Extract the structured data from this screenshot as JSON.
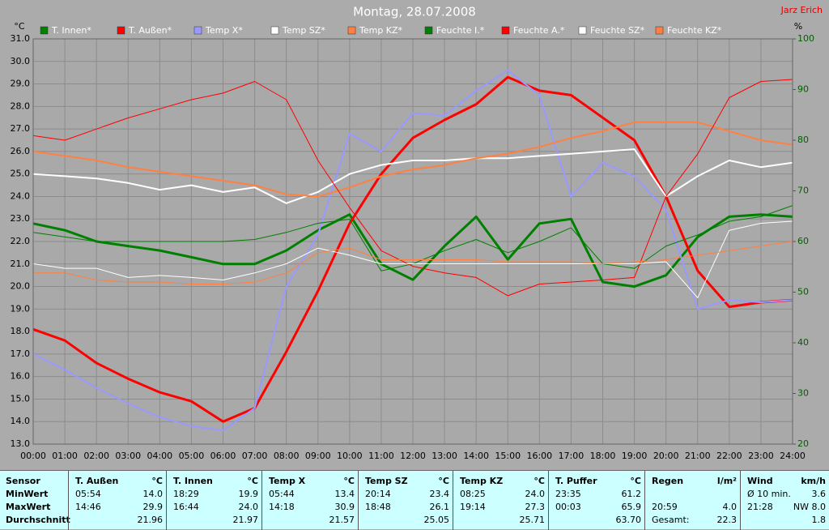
{
  "chart_data": {
    "type": "line",
    "title": "Montag, 28.07.2008",
    "credit": "Jarz Erich",
    "y_label": "°C",
    "y2_label": "%",
    "xlim": [
      0,
      24
    ],
    "xticks": [
      {
        "value": 0,
        "label": "00:00"
      },
      {
        "value": 1,
        "label": "01:00"
      },
      {
        "value": 2,
        "label": "02:00"
      },
      {
        "value": 3,
        "label": "03:00"
      },
      {
        "value": 4,
        "label": "04:00"
      },
      {
        "value": 5,
        "label": "05:00"
      },
      {
        "value": 6,
        "label": "06:00"
      },
      {
        "value": 7,
        "label": "07:00"
      },
      {
        "value": 8,
        "label": "08:00"
      },
      {
        "value": 9,
        "label": "09:00"
      },
      {
        "value": 10,
        "label": "10:00"
      },
      {
        "value": 11,
        "label": "11:00"
      },
      {
        "value": 12,
        "label": "12:00"
      },
      {
        "value": 13,
        "label": "13:00"
      },
      {
        "value": 14,
        "label": "14:00"
      },
      {
        "value": 15,
        "label": "15:00"
      },
      {
        "value": 16,
        "label": "16:00"
      },
      {
        "value": 17,
        "label": "17:00"
      },
      {
        "value": 18,
        "label": "18:00"
      },
      {
        "value": 19,
        "label": "19:00"
      },
      {
        "value": 20,
        "label": "20:00"
      },
      {
        "value": 21,
        "label": "21:00"
      },
      {
        "value": 22,
        "label": "22:00"
      },
      {
        "value": 23,
        "label": "23:00"
      },
      {
        "value": 24,
        "label": "24:00"
      }
    ],
    "ylim": [
      13,
      31
    ],
    "yticks": [
      {
        "value": 13,
        "label": "13.0"
      },
      {
        "value": 14,
        "label": "14.0"
      },
      {
        "value": 15,
        "label": "15.0"
      },
      {
        "value": 16,
        "label": "16.0"
      },
      {
        "value": 17,
        "label": "17.0"
      },
      {
        "value": 18,
        "label": "18.0"
      },
      {
        "value": 19,
        "label": "19.0"
      },
      {
        "value": 20,
        "label": "20.0"
      },
      {
        "value": 21,
        "label": "21.0"
      },
      {
        "value": 22,
        "label": "22.0"
      },
      {
        "value": 23,
        "label": "23.0"
      },
      {
        "value": 24,
        "label": "24.0"
      },
      {
        "value": 25,
        "label": "25.0"
      },
      {
        "value": 26,
        "label": "26.0"
      },
      {
        "value": 27,
        "label": "27.0"
      },
      {
        "value": 28,
        "label": "28.0"
      },
      {
        "value": 29,
        "label": "29.0"
      },
      {
        "value": 30,
        "label": "30.0"
      },
      {
        "value": 31,
        "label": "31.0"
      }
    ],
    "y2lim": [
      20,
      100
    ],
    "y2ticks": [
      20,
      30,
      40,
      50,
      60,
      70,
      80,
      90,
      100
    ],
    "grid": true,
    "x": [
      0,
      1,
      2,
      3,
      4,
      5,
      6,
      7,
      8,
      9,
      10,
      11,
      12,
      13,
      14,
      15,
      16,
      17,
      18,
      19,
      20,
      21,
      22,
      23,
      24
    ],
    "series": [
      {
        "name": "T. Innen*",
        "color": "#008000",
        "line_width": 3,
        "values": [
          22.8,
          22.5,
          22.0,
          21.8,
          21.6,
          21.3,
          21.0,
          21.0,
          21.6,
          22.5,
          23.2,
          21.0,
          20.3,
          21.8,
          23.1,
          21.2,
          22.8,
          23.0,
          20.2,
          20.0,
          20.5,
          22.2,
          23.1,
          23.2,
          23.1
        ]
      },
      {
        "name": "T. Außen*",
        "color": "#ff0000",
        "line_width": 3,
        "values": [
          18.1,
          17.6,
          16.6,
          15.9,
          15.3,
          14.9,
          14.0,
          14.6,
          17.1,
          19.8,
          22.8,
          25.0,
          26.6,
          27.4,
          28.1,
          29.3,
          28.7,
          28.5,
          27.5,
          26.5,
          24.0,
          20.7,
          19.1,
          19.3,
          19.4
        ]
      },
      {
        "name": "Temp X*",
        "color": "#9999ff",
        "line_width": 2,
        "values": [
          17.0,
          16.3,
          15.5,
          14.8,
          14.2,
          13.8,
          13.6,
          14.6,
          20.0,
          22.3,
          26.8,
          26.0,
          27.7,
          27.6,
          28.7,
          29.6,
          28.5,
          24.0,
          25.5,
          24.9,
          23.4,
          19.0,
          19.4,
          19.3,
          19.4
        ]
      },
      {
        "name": "Temp SZ*",
        "color": "#ffffff",
        "line_width": 2,
        "values": [
          25.0,
          24.9,
          24.8,
          24.6,
          24.3,
          24.5,
          24.2,
          24.4,
          23.7,
          24.2,
          25.0,
          25.4,
          25.6,
          25.6,
          25.7,
          25.7,
          25.8,
          25.9,
          26.0,
          26.1,
          24.0,
          24.9,
          25.6,
          25.3,
          25.5
        ]
      },
      {
        "name": "Temp KZ*",
        "color": "#ff8040",
        "line_width": 2,
        "values": [
          26.0,
          25.8,
          25.6,
          25.3,
          25.1,
          24.9,
          24.7,
          24.5,
          24.1,
          24.0,
          24.4,
          24.9,
          25.2,
          25.4,
          25.7,
          25.9,
          26.2,
          26.6,
          26.9,
          27.3,
          27.3,
          27.3,
          26.9,
          26.5,
          26.3
        ]
      },
      {
        "name": "Feuchte I.*",
        "color": "#008000",
        "line_width": 1,
        "axis": "y2",
        "values": [
          61.8,
          60.9,
          60.0,
          60.0,
          60.0,
          60.0,
          60.0,
          60.4,
          61.8,
          63.6,
          64.4,
          54.2,
          55.6,
          58.2,
          60.4,
          57.8,
          60.0,
          62.7,
          55.6,
          54.7,
          59.1,
          61.3,
          64.0,
          64.9,
          67.1
        ]
      },
      {
        "name": "Feuchte A.*",
        "color": "#ff0000",
        "line_width": 1,
        "axis": "y2",
        "values": [
          80.9,
          80.0,
          82.2,
          84.4,
          86.2,
          88.0,
          89.3,
          91.6,
          88.0,
          76.0,
          66.7,
          58.2,
          55.1,
          53.8,
          52.9,
          49.3,
          51.6,
          52.0,
          52.4,
          52.9,
          68.9,
          77.3,
          88.4,
          91.6,
          92.0
        ]
      },
      {
        "name": "Feuchte SZ*",
        "color": "#ffffff",
        "line_width": 1,
        "axis": "y2",
        "values": [
          55.6,
          54.7,
          54.7,
          52.9,
          53.3,
          52.9,
          52.4,
          53.8,
          55.6,
          58.7,
          57.3,
          55.6,
          55.6,
          55.6,
          55.6,
          55.6,
          55.6,
          55.6,
          55.6,
          55.6,
          56.0,
          48.9,
          62.2,
          63.6,
          64.0
        ]
      },
      {
        "name": "Feuchte KZ*",
        "color": "#ff8040",
        "line_width": 1,
        "axis": "y2",
        "values": [
          53.8,
          53.8,
          52.4,
          52.0,
          52.0,
          51.6,
          51.6,
          52.0,
          53.8,
          57.8,
          58.7,
          56.4,
          56.4,
          56.4,
          56.4,
          56.0,
          56.0,
          56.0,
          55.6,
          56.0,
          56.4,
          57.3,
          58.2,
          59.1,
          60.0
        ]
      }
    ]
  },
  "table": {
    "row_labels": [
      "Sensor",
      "MinWert",
      "MaxWert",
      "Durchschnitt"
    ],
    "columns": [
      {
        "name": "T. Außen",
        "unit": "°C",
        "rows": [
          [
            "05:54",
            "14.0"
          ],
          [
            "14:46",
            "29.9"
          ],
          [
            "21.96"
          ]
        ]
      },
      {
        "name": "T. Innen",
        "unit": "°C",
        "rows": [
          [
            "18:29",
            "19.9"
          ],
          [
            "16:44",
            "24.0"
          ],
          [
            "21.97"
          ]
        ]
      },
      {
        "name": "Temp X",
        "unit": "°C",
        "rows": [
          [
            "05:44",
            "13.4"
          ],
          [
            "14:18",
            "30.9"
          ],
          [
            "21.57"
          ]
        ]
      },
      {
        "name": "Temp SZ",
        "unit": "°C",
        "rows": [
          [
            "20:14",
            "23.4"
          ],
          [
            "18:48",
            "26.1"
          ],
          [
            "25.05"
          ]
        ]
      },
      {
        "name": "Temp KZ",
        "unit": "°C",
        "rows": [
          [
            "08:25",
            "24.0"
          ],
          [
            "19:14",
            "27.3"
          ],
          [
            "25.71"
          ]
        ]
      },
      {
        "name": "T. Puffer",
        "unit": "°C",
        "rows": [
          [
            "23:35",
            "61.2"
          ],
          [
            "00:03",
            "65.9"
          ],
          [
            "63.70"
          ]
        ]
      },
      {
        "name": "Regen",
        "unit": "l/m²",
        "rows": [
          [],
          [
            "20:59",
            "4.0"
          ],
          [
            "Gesamt:",
            "22.3"
          ]
        ]
      },
      {
        "name": "Wind",
        "unit": "km/h",
        "rows": [
          [
            "Ø 10 min.",
            "3.6"
          ],
          [
            "21:28",
            "NW 8.0"
          ],
          [
            "1.8"
          ]
        ]
      }
    ]
  }
}
